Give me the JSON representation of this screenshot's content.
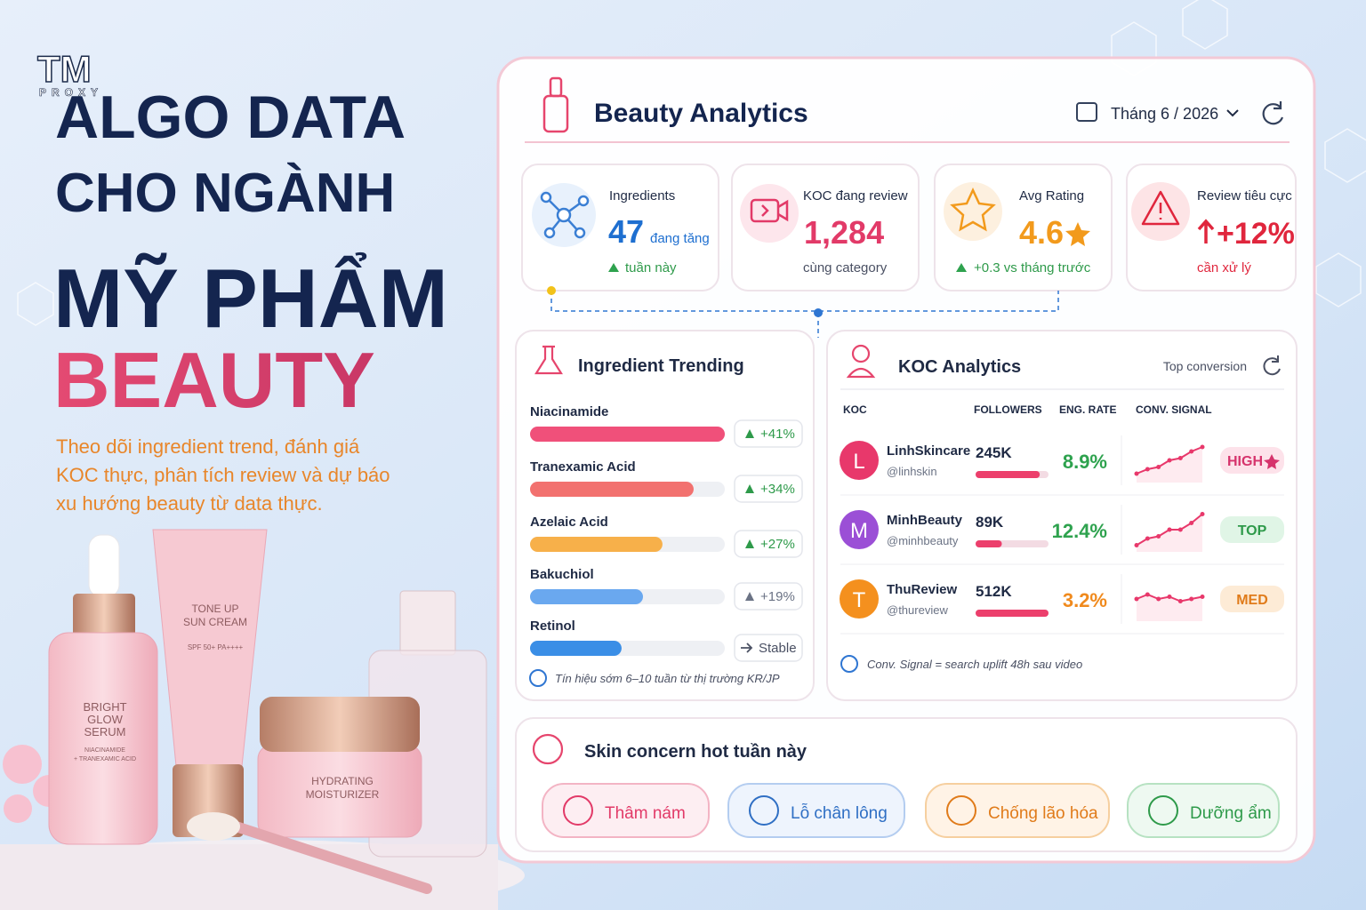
{
  "brand": {
    "logo": "TM",
    "logo_sub": "PROXY"
  },
  "headline": {
    "lines": [
      "ALGO DATA",
      "CHO NGÀNH",
      "MỸ PHẨM"
    ],
    "accent": "BEAUTY"
  },
  "subtitle_lines": [
    "Theo dõi ingredient trend, đánh giá",
    "KOC thực, phân tích review và dự báo",
    "xu hướng beauty từ data thực."
  ],
  "products": [
    {
      "name_lines": [
        "BRIGHT",
        "GLOW",
        "SERUM"
      ],
      "detail_lines": [
        "NIACINAMIDE",
        "+ TRANEXAMIC ACID"
      ]
    },
    {
      "name_lines": [
        "TONE UP",
        "SUN CREAM"
      ],
      "detail_lines": [
        "SPF 50+ PA++++"
      ]
    },
    {
      "name_lines": [
        "HYDRATING",
        "MOISTURIZER"
      ]
    }
  ],
  "dashboard": {
    "title": "Beauty Analytics",
    "period": "Tháng 6 / 2026",
    "kpis": [
      {
        "label": "Ingredients",
        "value": "47",
        "unit": "đang tăng",
        "note": "tuần này",
        "color": "#1e6fd0"
      },
      {
        "label": "KOC đang review",
        "value": "1,284",
        "note": "cùng category",
        "color": "#e23a68"
      },
      {
        "label": "Avg Rating",
        "value": "4.6",
        "note": "+0.3 vs tháng trước",
        "color": "#f29a1c"
      },
      {
        "label": "Review tiêu cực",
        "value": "+12%",
        "note": "cần xử lý",
        "color": "#e0263d"
      }
    ],
    "ingredients": {
      "title": "Ingredient Trending",
      "items": [
        {
          "name": "Niacinamide",
          "change": "+41%",
          "level": 100,
          "trend": "up",
          "color": "#f0507a"
        },
        {
          "name": "Tranexamic Acid",
          "change": "+34%",
          "level": 84,
          "trend": "up",
          "color": "#f2716f"
        },
        {
          "name": "Azelaic Acid",
          "change": "+27%",
          "level": 68,
          "trend": "up",
          "color": "#f7b04a"
        },
        {
          "name": "Bakuchiol",
          "change": "+19%",
          "level": 58,
          "trend": "up",
          "color": "#6aa8ef"
        },
        {
          "name": "Retinol",
          "change": "Stable",
          "level": 47,
          "trend": "stable",
          "color": "#3a8ee6"
        }
      ],
      "footnote": "Tín hiệu sớm 6–10 tuần từ thị trường KR/JP"
    },
    "koc": {
      "title": "KOC Analytics",
      "filter": "Top conversion",
      "columns": [
        "KOC",
        "FOLLOWERS",
        "ENG. RATE",
        "CONV. SIGNAL"
      ],
      "rows": [
        {
          "initial": "L",
          "name": "LinhSkincare",
          "handle": "@linhskin",
          "followers": "245K",
          "follower_level": 88,
          "eng": "8.9%",
          "signal": [
            2,
            3,
            3.5,
            5,
            5.5,
            7,
            8
          ],
          "badge": "HIGH",
          "avatar_color": "#e8386b",
          "eng_color": "#2ea24e",
          "badge_bg": "#fde2ea",
          "badge_color": "#d6336c"
        },
        {
          "initial": "M",
          "name": "MinhBeauty",
          "handle": "@minhbeauty",
          "followers": "89K",
          "follower_level": 36,
          "eng": "12.4%",
          "signal": [
            1.5,
            3,
            3.5,
            5,
            5,
            6.5,
            8.5
          ],
          "badge": "TOP",
          "avatar_color": "#9b4fd6",
          "eng_color": "#2ea24e",
          "badge_bg": "#e0f5e6",
          "badge_color": "#2e9a4a"
        },
        {
          "initial": "T",
          "name": "ThuReview",
          "handle": "@thureview",
          "followers": "512K",
          "follower_level": 100,
          "eng": "3.2%",
          "signal": [
            5,
            6,
            5,
            5.5,
            4.5,
            5,
            5.5
          ],
          "badge": "MED",
          "avatar_color": "#f4901e",
          "eng_color": "#f08a1d",
          "badge_bg": "#fdebd6",
          "badge_color": "#e07b1a"
        }
      ],
      "footnote": "Conv. Signal = search uplift 48h sau video"
    },
    "skin": {
      "title": "Skin concern hot tuần này",
      "tags": [
        "Thâm nám",
        "Lỗ chân lông",
        "Chống lão hóa",
        "Dưỡng ẩm"
      ]
    }
  }
}
